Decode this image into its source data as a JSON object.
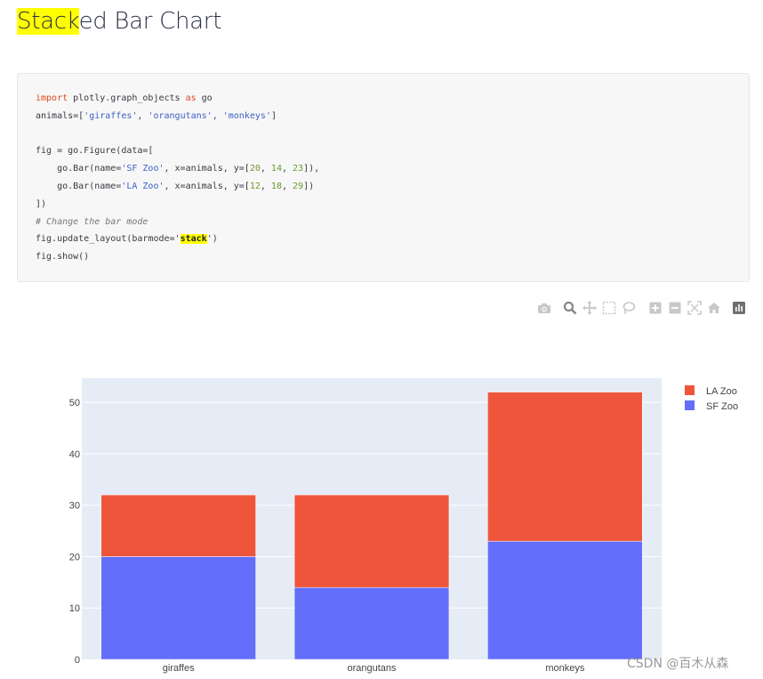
{
  "page": {
    "title_highlighted": "Stack",
    "title_rest": "ed Bar Chart"
  },
  "code": {
    "language": "python",
    "lines": [
      [
        {
          "t": "import",
          "c": "kw"
        },
        {
          "t": " plotly.graph_objects "
        },
        {
          "t": "as",
          "c": "kw"
        },
        {
          "t": " go"
        }
      ],
      [
        {
          "t": "animals=["
        },
        {
          "t": "'giraffes'",
          "c": "str"
        },
        {
          "t": ", "
        },
        {
          "t": "'orangutans'",
          "c": "str"
        },
        {
          "t": ", "
        },
        {
          "t": "'monkeys'",
          "c": "str"
        },
        {
          "t": "]"
        }
      ],
      [],
      [
        {
          "t": "fig = go.Figure(data=["
        }
      ],
      [
        {
          "t": "    go.Bar(name="
        },
        {
          "t": "'SF Zoo'",
          "c": "str"
        },
        {
          "t": ", x=animals, y=["
        },
        {
          "t": "20",
          "c": "num"
        },
        {
          "t": ", "
        },
        {
          "t": "14",
          "c": "num"
        },
        {
          "t": ", "
        },
        {
          "t": "23",
          "c": "num"
        },
        {
          "t": "]),"
        }
      ],
      [
        {
          "t": "    go.Bar(name="
        },
        {
          "t": "'LA Zoo'",
          "c": "str"
        },
        {
          "t": ", x=animals, y=["
        },
        {
          "t": "12",
          "c": "num"
        },
        {
          "t": ", "
        },
        {
          "t": "18",
          "c": "num"
        },
        {
          "t": ", "
        },
        {
          "t": "29",
          "c": "num"
        },
        {
          "t": "])"
        }
      ],
      [
        {
          "t": "])"
        }
      ],
      [
        {
          "t": "# Change the bar mode",
          "c": "cm"
        }
      ],
      [
        {
          "t": "fig.update_layout(barmode="
        },
        {
          "t": "'"
        },
        {
          "t": "stack",
          "c": "hlstr"
        },
        {
          "t": "'"
        },
        {
          "t": ")"
        }
      ],
      [
        {
          "t": "fig.show()"
        }
      ]
    ]
  },
  "modebar": {
    "buttons": [
      "camera-icon",
      "zoom-icon",
      "pan-icon",
      "box-select-icon",
      "lasso-icon",
      "zoom-in-icon",
      "zoom-out-icon",
      "autoscale-icon",
      "reset-axes-icon",
      "plotly-logo-icon"
    ]
  },
  "chart_data": {
    "type": "bar",
    "barmode": "stack",
    "categories": [
      "giraffes",
      "orangutans",
      "monkeys"
    ],
    "series": [
      {
        "name": "SF Zoo",
        "values": [
          20,
          14,
          23
        ],
        "color": "#636efa"
      },
      {
        "name": "LA Zoo",
        "values": [
          12,
          18,
          29
        ],
        "color": "#ef553b"
      }
    ],
    "ylim": [
      0,
      54.7
    ],
    "yticks": [
      0,
      10,
      20,
      30,
      40,
      50
    ],
    "grid": true,
    "legend_position": "top-right",
    "legend_order": [
      "LA Zoo",
      "SF Zoo"
    ],
    "plot_bgcolor": "#e5ecf6"
  },
  "watermark": "CSDN @百木从森"
}
